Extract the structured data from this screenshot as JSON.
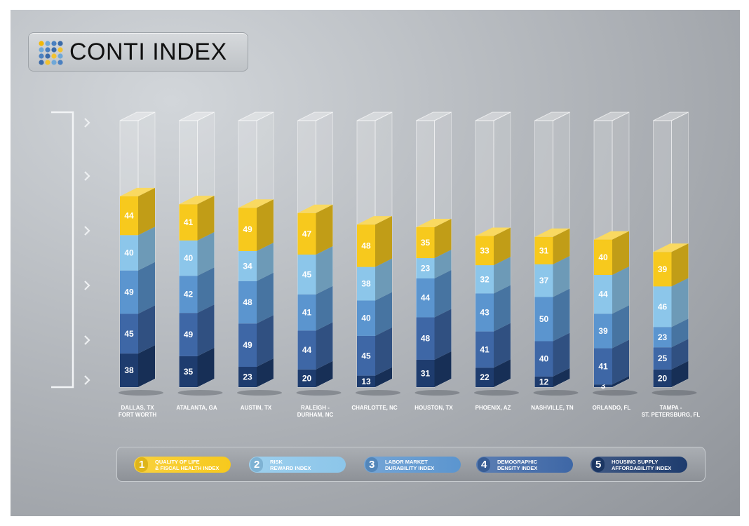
{
  "title": "CONTI INDEX",
  "colors": {
    "quality": "#f7c91d",
    "risk": "#8cc6ea",
    "labor": "#5b95cf",
    "demographic": "#3e67a6",
    "housing": "#1e3c6e"
  },
  "chart_data": {
    "type": "bar",
    "stacked": true,
    "categories": [
      "DALLAS, TX\nFORT WORTH",
      "ATALANTA, GA",
      "AUSTIN, TX",
      "RALEIGH -\nDURHAM, NC",
      "CHARLOTTE, NC",
      "HOUSTON, TX",
      "PHOENIX, AZ",
      "NASHVILLE, TN",
      "ORLANDO, FL",
      "TAMPA -\nST. PETERSBURG, FL"
    ],
    "series": [
      {
        "name": "Housing Supply Affordability Index",
        "key": "housing",
        "values": [
          38,
          35,
          23,
          20,
          13,
          31,
          22,
          12,
          3,
          20
        ]
      },
      {
        "name": "Demographic Density Index",
        "key": "demographic",
        "values": [
          45,
          49,
          49,
          44,
          45,
          48,
          41,
          40,
          41,
          25
        ]
      },
      {
        "name": "Labor Market Durability Index",
        "key": "labor",
        "values": [
          49,
          42,
          48,
          41,
          40,
          44,
          43,
          50,
          39,
          23
        ]
      },
      {
        "name": "Risk Reward Index",
        "key": "risk",
        "values": [
          40,
          40,
          34,
          45,
          38,
          23,
          32,
          37,
          44,
          46
        ]
      },
      {
        "name": "Quality of Life & Fiscal Health Index",
        "key": "quality",
        "values": [
          44,
          41,
          49,
          47,
          48,
          35,
          33,
          31,
          40,
          39
        ]
      }
    ],
    "ylim": [
      0,
      300
    ]
  },
  "legend": [
    {
      "num": "1",
      "label": "QUALITY OF LIFE\n& FISCAL HEALTH INDEX",
      "key": "quality"
    },
    {
      "num": "2",
      "label": "RISK\nREWARD INDEX",
      "key": "risk"
    },
    {
      "num": "3",
      "label": "LABOR MARKET\nDURABILITY INDEX",
      "key": "labor"
    },
    {
      "num": "4",
      "label": "DEMOGRAPHIC\nDENSITY INDEX",
      "key": "demographic"
    },
    {
      "num": "5",
      "label": "HOUSING SUPPLY\nAFFORDABILITY INDEX",
      "key": "housing"
    }
  ]
}
